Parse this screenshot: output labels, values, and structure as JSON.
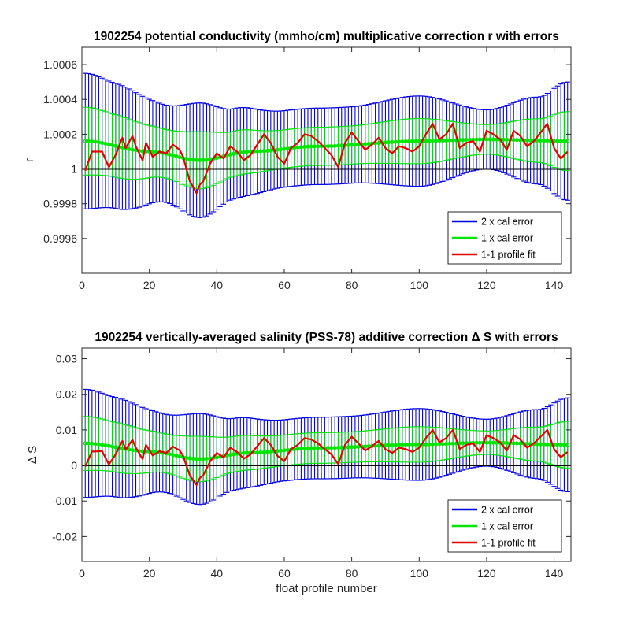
{
  "chart_data": [
    {
      "type": "line",
      "title": "1902254 potential conductivity (mmho/cm) multiplicative correction r with errors",
      "xlabel": "",
      "ylabel": "r",
      "xlim": [
        0,
        145
      ],
      "ylim": [
        0.9994,
        1.0007
      ],
      "xticks": [
        0,
        20,
        40,
        60,
        80,
        100,
        120,
        140
      ],
      "yticks": [
        0.9996,
        0.9998,
        1,
        1.0002,
        1.0004,
        1.0006
      ],
      "ytick_labels": [
        "0.9996",
        "0.9998",
        "1",
        "1.0002",
        "1.0004",
        "1.0006"
      ],
      "reference_line": 1,
      "legend_position": "lower-right",
      "series": [
        {
          "name": "2 x cal error",
          "color": "#0000e6",
          "kind": "errorbar",
          "center_knots": {
            "x": [
              1,
              20,
              35,
              50,
              70,
              100,
              120,
              144
            ],
            "y": [
              1.00016,
              1.0001,
              1.00005,
              1.0001,
              1.00013,
              1.00016,
              1.00017,
              1.00016
            ]
          },
          "halfwidth_knots": {
            "x": [
              1,
              10,
              25,
              35,
              45,
              60,
              80,
              100,
              120,
              135,
              144
            ],
            "y": [
              0.00039,
              0.00036,
              0.00028,
              0.00033,
              0.00026,
              0.00022,
              0.00022,
              0.00026,
              0.00017,
              0.00025,
              0.00034
            ]
          }
        },
        {
          "name": "1 x cal error",
          "color": "#00e600",
          "kind": "errorbar",
          "center_knots": {
            "x": [
              1,
              20,
              35,
              50,
              70,
              100,
              120,
              144
            ],
            "y": [
              1.00016,
              1.0001,
              1.00005,
              1.0001,
              1.00013,
              1.00016,
              1.00017,
              1.00016
            ]
          },
          "halfwidth_knots": {
            "x": [
              1,
              10,
              25,
              35,
              45,
              60,
              80,
              100,
              120,
              135,
              144
            ],
            "y": [
              0.000195,
              0.00018,
              0.00014,
              0.000165,
              0.00013,
              0.00011,
              0.00011,
              0.00013,
              8.5e-05,
              0.000125,
              0.00017
            ]
          }
        },
        {
          "name": "1-1 profile fit",
          "color": "#e60000",
          "kind": "line",
          "x": [
            1,
            3,
            6,
            8,
            10,
            12,
            13,
            15,
            16,
            18,
            19,
            21,
            23,
            25,
            27,
            29,
            30,
            32,
            34,
            35,
            36,
            38,
            40,
            42,
            44,
            46,
            48,
            50,
            52,
            54,
            56,
            58,
            60,
            62,
            64,
            66,
            68,
            70,
            72,
            74,
            76,
            78,
            80,
            82,
            84,
            86,
            88,
            90,
            92,
            94,
            96,
            98,
            100,
            102,
            104,
            106,
            108,
            110,
            112,
            114,
            116,
            118,
            120,
            122,
            124,
            126,
            128,
            130,
            132,
            134,
            136,
            138,
            140,
            142,
            144
          ],
          "y": [
            0.99999,
            1.0001,
            1.0001,
            1.00001,
            1.00008,
            1.00018,
            1.00012,
            1.00019,
            1.00013,
            1.00005,
            1.00015,
            1.00007,
            1.0001,
            1.00009,
            1.00014,
            1.00011,
            1.00007,
            0.99993,
            0.99986,
            0.99991,
            0.99993,
            1.00003,
            1.00009,
            1.00006,
            1.00013,
            1.0001,
            1.00005,
            1.00008,
            1.00014,
            1.0002,
            1.00015,
            1.00007,
            1.00003,
            1.00012,
            1.00015,
            1.0002,
            1.00019,
            1.00016,
            1.00012,
            1.00008,
            1.00001,
            1.00015,
            1.00021,
            1.00016,
            1.00011,
            1.00014,
            1.00018,
            1.00012,
            1.00009,
            1.00013,
            1.00012,
            1.0001,
            1.00013,
            1.0002,
            1.00026,
            1.00017,
            1.0002,
            1.00026,
            1.00012,
            1.00015,
            1.00016,
            1.0001,
            1.00022,
            1.0002,
            1.00017,
            1.00011,
            1.00022,
            1.00019,
            1.00013,
            1.00016,
            1.00021,
            1.00026,
            1.00012,
            1.00006,
            1.0001
          ]
        }
      ],
      "legend": [
        "2 x cal error",
        "1 x cal error",
        "1-1 profile fit"
      ]
    },
    {
      "type": "line",
      "title": "1902254 vertically-averaged salinity (PSS-78) additive correction Δ S with errors",
      "xlabel": "float profile number",
      "ylabel": "Δ S",
      "xlim": [
        0,
        145
      ],
      "ylim": [
        -0.027,
        0.033
      ],
      "xticks": [
        0,
        20,
        40,
        60,
        80,
        100,
        120,
        140
      ],
      "yticks": [
        -0.02,
        -0.01,
        0,
        0.01,
        0.02,
        0.03
      ],
      "ytick_labels": [
        "-0.02",
        "-0.01",
        "0",
        "0.01",
        "0.02",
        "0.03"
      ],
      "reference_line": 0,
      "legend_position": "lower-right",
      "series": [
        {
          "name": "2 x cal error",
          "color": "#0000e6",
          "kind": "errorbar",
          "center_knots": {
            "x": [
              1,
              20,
              35,
              50,
              70,
              100,
              120,
              144
            ],
            "y": [
              0.0062,
              0.0039,
              0.0018,
              0.0036,
              0.0049,
              0.0059,
              0.0064,
              0.0058
            ]
          },
          "halfwidth_knots": {
            "x": [
              1,
              10,
              25,
              35,
              45,
              60,
              80,
              100,
              120,
              135,
              144
            ],
            "y": [
              0.0152,
              0.014,
              0.011,
              0.0128,
              0.0101,
              0.0086,
              0.0087,
              0.0101,
              0.0066,
              0.0097,
              0.0132
            ]
          }
        },
        {
          "name": "1 x cal error",
          "color": "#00e600",
          "kind": "errorbar",
          "center_knots": {
            "x": [
              1,
              20,
              35,
              50,
              70,
              100,
              120,
              144
            ],
            "y": [
              0.0062,
              0.0039,
              0.0018,
              0.0036,
              0.0049,
              0.0059,
              0.0064,
              0.0058
            ]
          },
          "halfwidth_knots": {
            "x": [
              1,
              10,
              25,
              35,
              45,
              60,
              80,
              100,
              120,
              135,
              144
            ],
            "y": [
              0.0076,
              0.007,
              0.0055,
              0.0064,
              0.005,
              0.0043,
              0.0043,
              0.005,
              0.0033,
              0.0048,
              0.0066
            ]
          }
        },
        {
          "name": "1-1 profile fit",
          "color": "#e60000",
          "kind": "line",
          "x": [
            1,
            3,
            6,
            8,
            10,
            12,
            13,
            15,
            16,
            18,
            19,
            21,
            23,
            25,
            27,
            29,
            30,
            32,
            34,
            35,
            36,
            38,
            40,
            42,
            44,
            46,
            48,
            50,
            52,
            54,
            56,
            58,
            60,
            62,
            64,
            66,
            68,
            70,
            72,
            74,
            76,
            78,
            80,
            82,
            84,
            86,
            88,
            90,
            92,
            94,
            96,
            98,
            100,
            102,
            104,
            106,
            108,
            110,
            112,
            114,
            116,
            118,
            120,
            122,
            124,
            126,
            128,
            130,
            132,
            134,
            136,
            138,
            140,
            142,
            144
          ],
          "y": [
            -0.0003,
            0.0039,
            0.004,
            0.0003,
            0.0031,
            0.0069,
            0.0045,
            0.0072,
            0.005,
            0.0018,
            0.0058,
            0.0028,
            0.004,
            0.0035,
            0.0053,
            0.0042,
            0.0027,
            -0.0028,
            -0.0055,
            -0.0035,
            -0.0027,
            0.0011,
            0.0035,
            0.0023,
            0.005,
            0.0038,
            0.0019,
            0.0031,
            0.0054,
            0.0077,
            0.0058,
            0.0027,
            0.0012,
            0.0046,
            0.0058,
            0.0077,
            0.0073,
            0.0062,
            0.0046,
            0.0031,
            0.0004,
            0.0058,
            0.0081,
            0.0062,
            0.0042,
            0.0054,
            0.0069,
            0.0046,
            0.0035,
            0.005,
            0.0046,
            0.0038,
            0.005,
            0.0077,
            0.01,
            0.0065,
            0.0077,
            0.01,
            0.0046,
            0.0058,
            0.0062,
            0.0038,
            0.0085,
            0.0077,
            0.0065,
            0.0042,
            0.0085,
            0.0073,
            0.005,
            0.0062,
            0.0081,
            0.01,
            0.0046,
            0.0023,
            0.0038
          ]
        }
      ],
      "legend": [
        "2 x cal error",
        "1 x cal error",
        "1-1 profile fit"
      ]
    }
  ]
}
